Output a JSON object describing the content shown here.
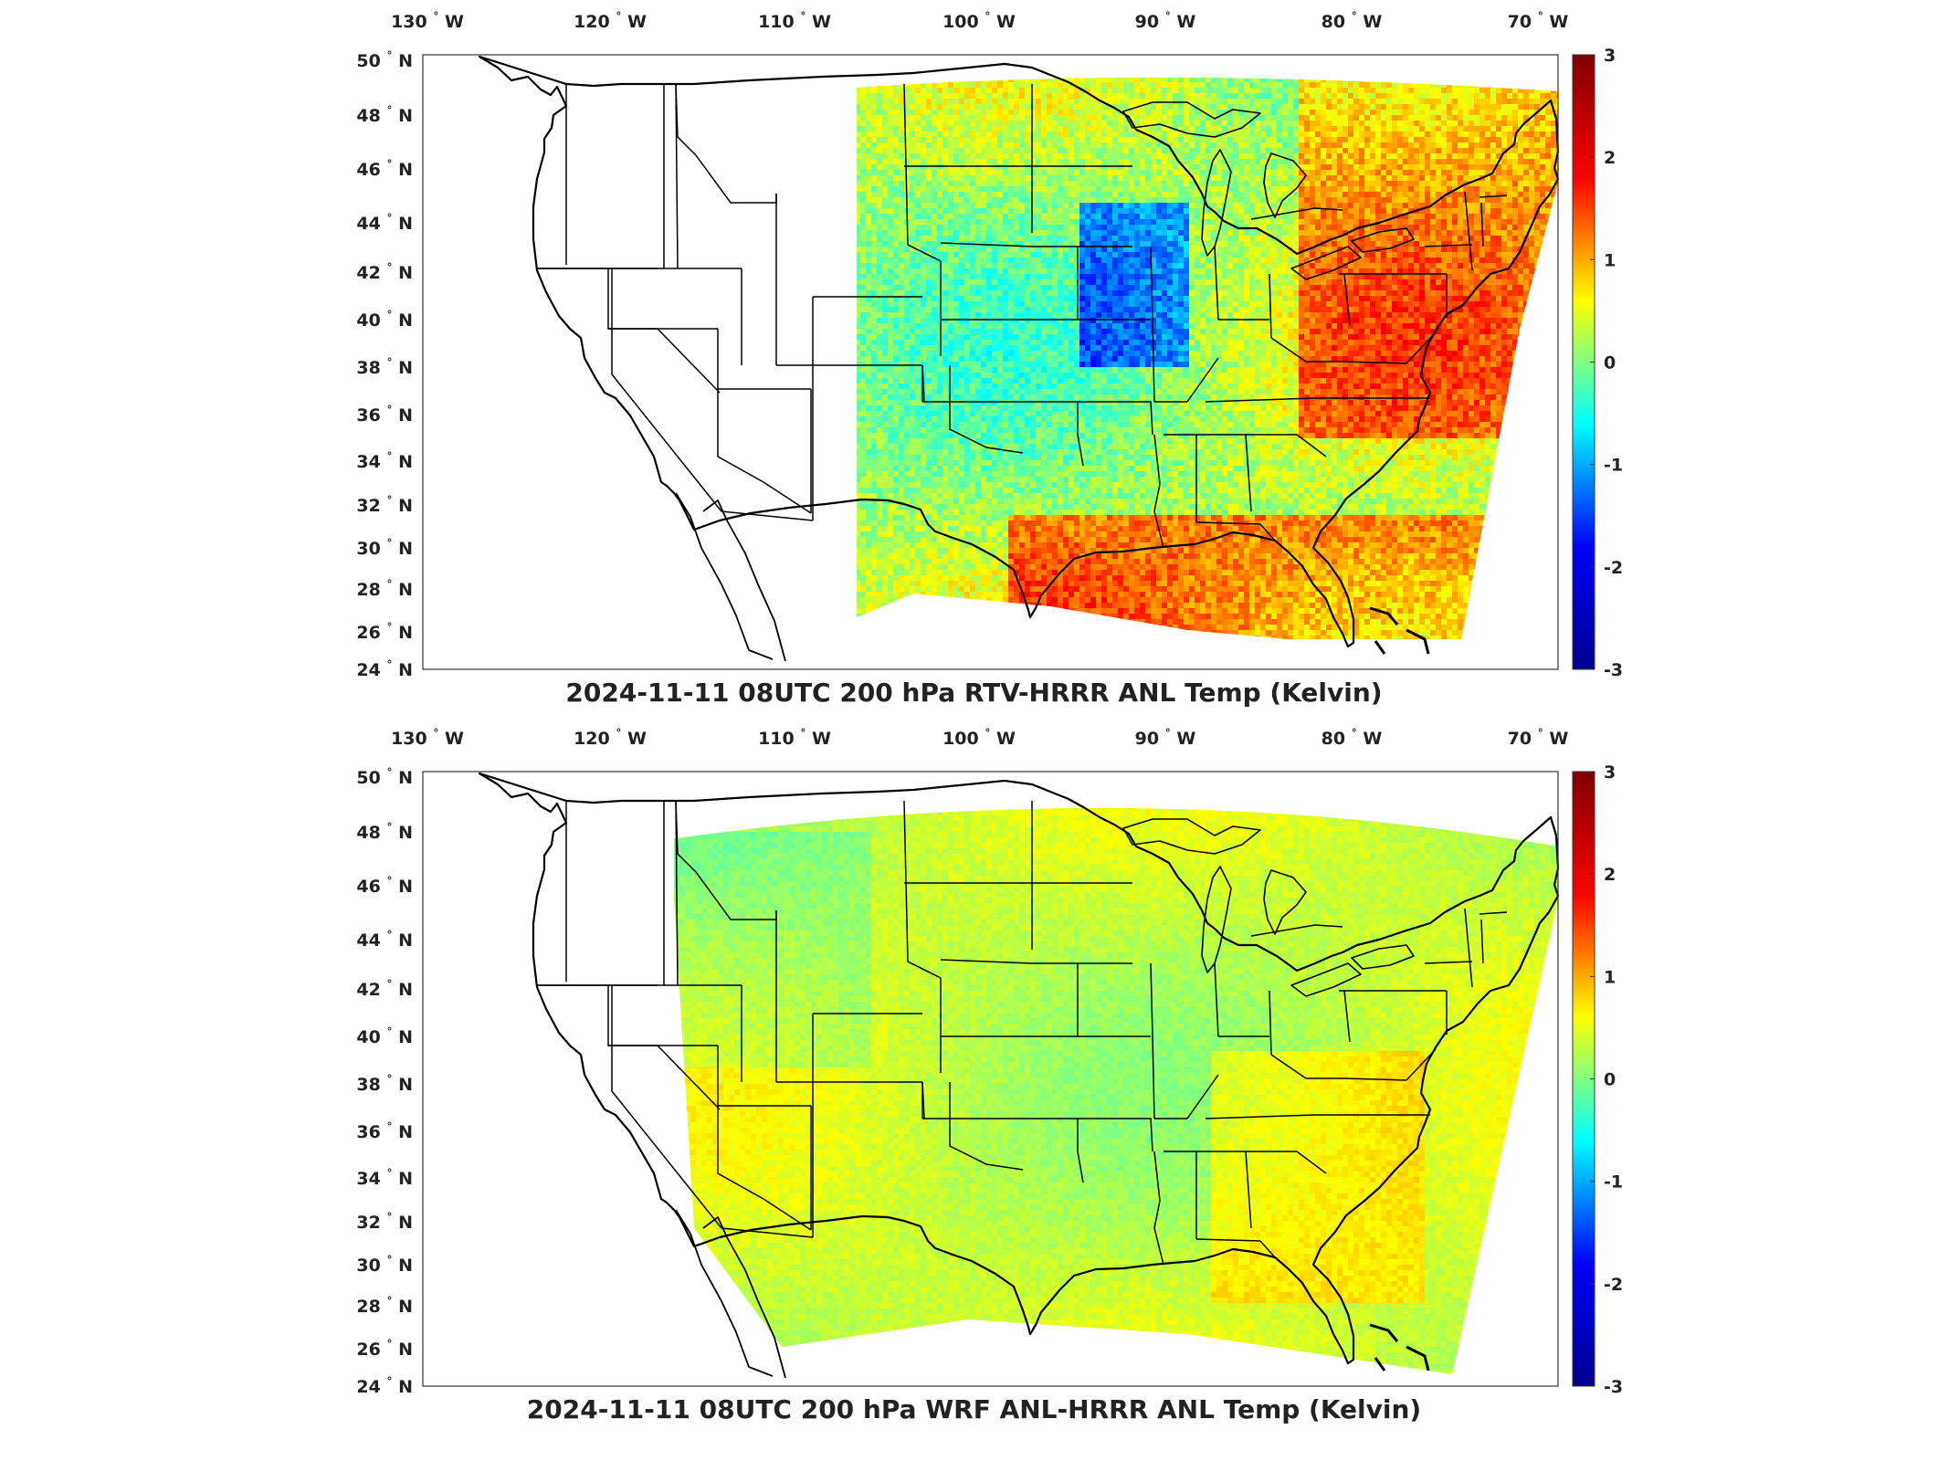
{
  "panels": [
    {
      "title": "2024-11-11 08UTC 200 hPa RTV-HRRR ANL Temp (Kelvin)",
      "variant": "rtv"
    },
    {
      "title": "2024-11-11 08UTC 200 hPa WRF ANL-HRRR ANL Temp (Kelvin)",
      "variant": "wrf"
    }
  ],
  "longitude_ticks": [
    "130",
    "120",
    "110",
    "100",
    "90",
    "80",
    "70"
  ],
  "longitude_hemisphere": "W",
  "latitude_ticks": [
    "50",
    "48",
    "46",
    "44",
    "42",
    "40",
    "38",
    "36",
    "34",
    "32",
    "30",
    "28",
    "26",
    "24"
  ],
  "latitude_hemisphere": "N",
  "degree_symbol": "°",
  "colorbar": {
    "ticks": [
      "3",
      "2",
      "1",
      "0",
      "-1",
      "-2",
      "-3"
    ],
    "min": -3,
    "max": 3,
    "colormap": "jet",
    "stops": [
      "#00008f",
      "#0000ff",
      "#00ffff",
      "#ffff00",
      "#ff0000",
      "#800000"
    ]
  }
}
